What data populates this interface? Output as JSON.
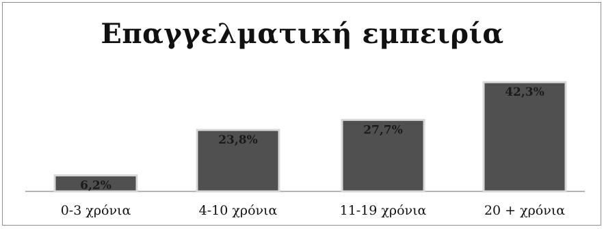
{
  "chart_data": {
    "type": "bar",
    "title": "Επαγγελματική εμπειρία",
    "xlabel": "",
    "ylabel": "",
    "categories": [
      "0-3 χρόνια",
      "4-10 χρόνια",
      "11-19 χρόνια",
      "20 + χρόνια"
    ],
    "values": [
      6.2,
      23.8,
      27.7,
      42.3
    ],
    "data_labels": [
      "6,2%",
      "23,8%",
      "27,7%",
      "42,3%"
    ],
    "ylim": [
      0,
      45
    ],
    "grid": false,
    "legend": "none",
    "colors": {
      "bar": "#505050",
      "bar_border": "#d8d8d8",
      "axis": "#9a9a9a"
    }
  }
}
